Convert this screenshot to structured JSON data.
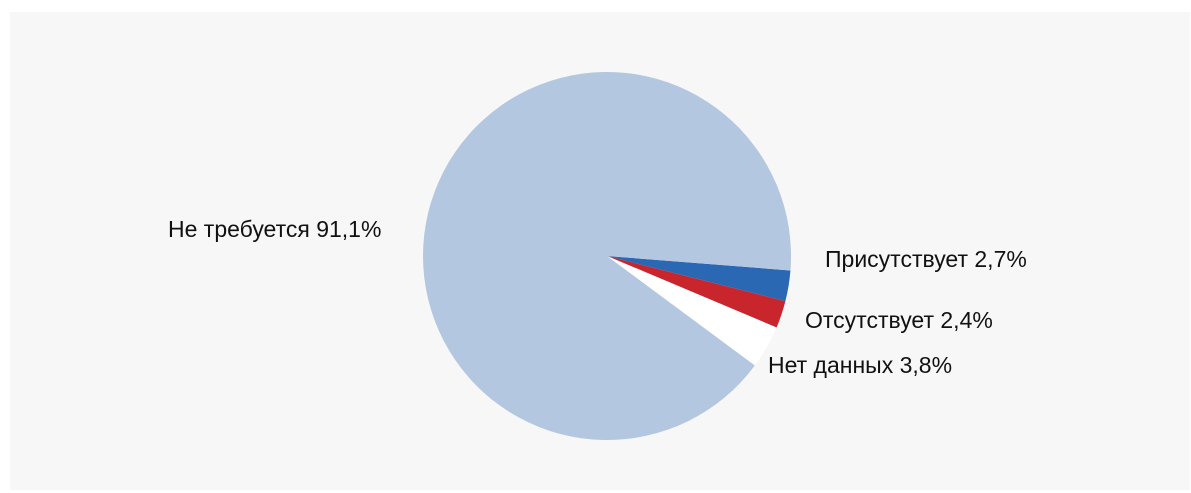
{
  "chart_data": {
    "type": "pie",
    "title": "",
    "slices": [
      {
        "label": "Присутствует 2,7%",
        "value": 2.7,
        "color": "#2b68b3"
      },
      {
        "label": "Отсутствует 2,4%",
        "value": 2.4,
        "color": "#c8252c"
      },
      {
        "label": "Нет данных 3,8%",
        "value": 3.8,
        "color": "#ffffff"
      },
      {
        "label": "Не требуется 91,1%",
        "value": 91.1,
        "color": "#b4c7e0"
      }
    ],
    "legend": "none",
    "label_placement": "outside"
  }
}
